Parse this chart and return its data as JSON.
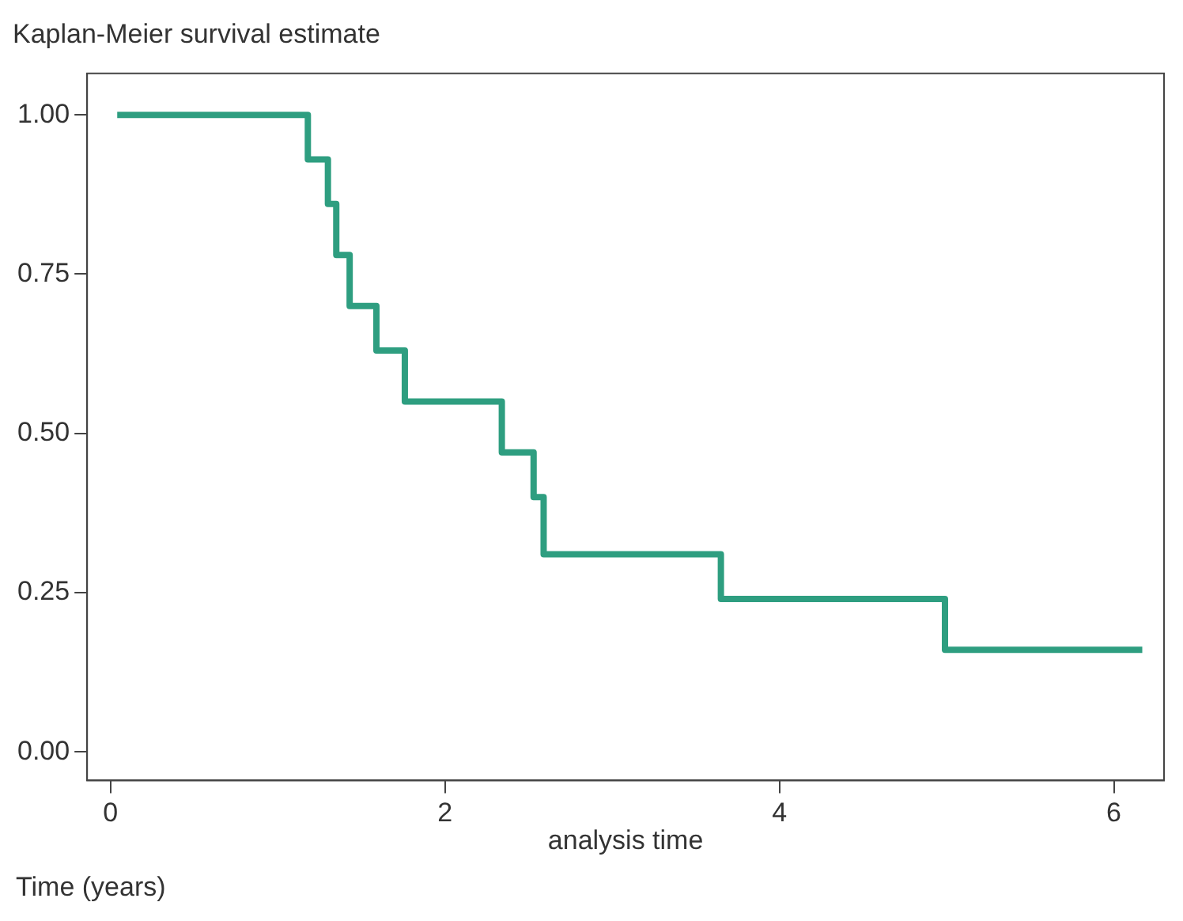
{
  "chart_data": {
    "type": "step",
    "title": "Kaplan-Meier survival estimate",
    "xlabel": "analysis time",
    "annotations": [
      "Time (years)"
    ],
    "x": [
      0.04,
      1.18,
      1.3,
      1.35,
      1.43,
      1.59,
      1.76,
      2.34,
      2.53,
      2.59,
      3.65,
      4.99,
      6.17
    ],
    "series": [
      {
        "color": "#2e9e80",
        "values": [
          1.0,
          0.93,
          0.86,
          0.78,
          0.7,
          0.63,
          0.55,
          0.47,
          0.4,
          0.31,
          0.24,
          0.16,
          0.16
        ]
      }
    ],
    "xlim": [
      -0.14,
      6.3
    ],
    "xticks": [
      0,
      2,
      4,
      6
    ],
    "ylim": [
      -0.045,
      1.065
    ],
    "yticks": [
      {
        "value": 0,
        "label": "0.00"
      },
      {
        "value": 0.25,
        "label": "0.25"
      },
      {
        "value": 0.5,
        "label": "0.50"
      },
      {
        "value": 0.75,
        "label": "0.75"
      },
      {
        "value": 1,
        "label": "1.00"
      }
    ],
    "grid": false,
    "legend": false,
    "marker": "none",
    "line_style": "solid"
  }
}
